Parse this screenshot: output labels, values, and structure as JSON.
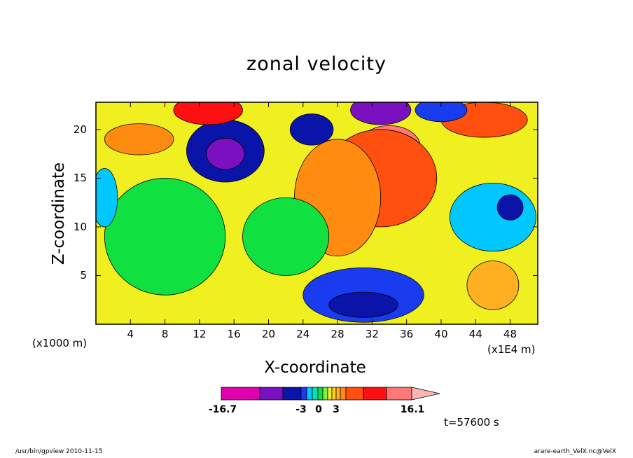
{
  "chart_data": {
    "type": "heatmap",
    "title": "zonal velocity",
    "xlabel": "X-coordinate",
    "ylabel": "Z-coordinate",
    "x_unit_label": "(x1000 m)",
    "x_unit_label_2": "(x1E4 m)",
    "x_ticks": [
      "4",
      "8",
      "12",
      "16",
      "20",
      "24",
      "28",
      "32",
      "36",
      "40",
      "44",
      "48"
    ],
    "y_ticks": [
      "5",
      "10",
      "15",
      "20"
    ],
    "xlim": [
      0,
      51.2
    ],
    "ylim": [
      0,
      22.8
    ],
    "colorbar": {
      "min_label": "-16.7",
      "max_label": "16.1",
      "mid_labels": [
        "-3",
        "0",
        "3"
      ],
      "colors": [
        "#e000b0",
        "#7a10c0",
        "#0a14a8",
        "#1a3cf0",
        "#00c8ff",
        "#00e0c0",
        "#10e040",
        "#80f040",
        "#f0f020",
        "#ffd020",
        "#ffb020",
        "#ff8c10",
        "#ff5010",
        "#ff1010",
        "#ff7878",
        "#ffb4b4"
      ]
    },
    "blobs": [
      {
        "x": 15,
        "z": 17.8,
        "level": 2,
        "rx": 4.5,
        "rz": 3.2
      },
      {
        "x": 15,
        "z": 17.5,
        "level": 1,
        "rx": 2.2,
        "rz": 1.6
      },
      {
        "x": 34,
        "z": 18.2,
        "level": 14,
        "rx": 3.6,
        "rz": 2.2
      },
      {
        "x": 33,
        "z": 15,
        "level": 12,
        "rx": 6.5,
        "rz": 5
      },
      {
        "x": 28,
        "z": 13,
        "level": 11,
        "rx": 5,
        "rz": 6
      },
      {
        "x": 31,
        "z": 3,
        "level": 3,
        "rx": 7,
        "rz": 2.8
      },
      {
        "x": 31,
        "z": 2,
        "level": 2,
        "rx": 4,
        "rz": 1.3
      },
      {
        "x": 33,
        "z": 22,
        "level": 1,
        "rx": 3.5,
        "rz": 1.5
      },
      {
        "x": 45,
        "z": 21,
        "level": 12,
        "rx": 5,
        "rz": 1.8
      },
      {
        "x": 13,
        "z": 22,
        "level": 13,
        "rx": 4,
        "rz": 1.5
      },
      {
        "x": 25,
        "z": 20,
        "level": 2,
        "rx": 2.5,
        "rz": 1.6
      },
      {
        "x": 46,
        "z": 11,
        "level": 4,
        "rx": 5,
        "rz": 3.5
      },
      {
        "x": 48,
        "z": 12,
        "level": 2,
        "rx": 1.5,
        "rz": 1.3
      },
      {
        "x": 8,
        "z": 9,
        "level": 6,
        "rx": 7,
        "rz": 6
      },
      {
        "x": 22,
        "z": 9,
        "level": 6,
        "rx": 5,
        "rz": 4
      },
      {
        "x": 5,
        "z": 19,
        "level": 11,
        "rx": 4,
        "rz": 1.6
      },
      {
        "x": 46,
        "z": 4,
        "level": 10,
        "rx": 3,
        "rz": 2.5
      },
      {
        "x": 1,
        "z": 13,
        "level": 4,
        "rx": 1.5,
        "rz": 3
      },
      {
        "x": 40,
        "z": 22,
        "level": 3,
        "rx": 3,
        "rz": 1.2
      }
    ],
    "background_level": 8
  },
  "footer": {
    "left": "/usr/bin/gpview   2010-11-15",
    "right": "arare-earth_VelX.nc@VelX"
  },
  "time_label": "t=57600  s"
}
